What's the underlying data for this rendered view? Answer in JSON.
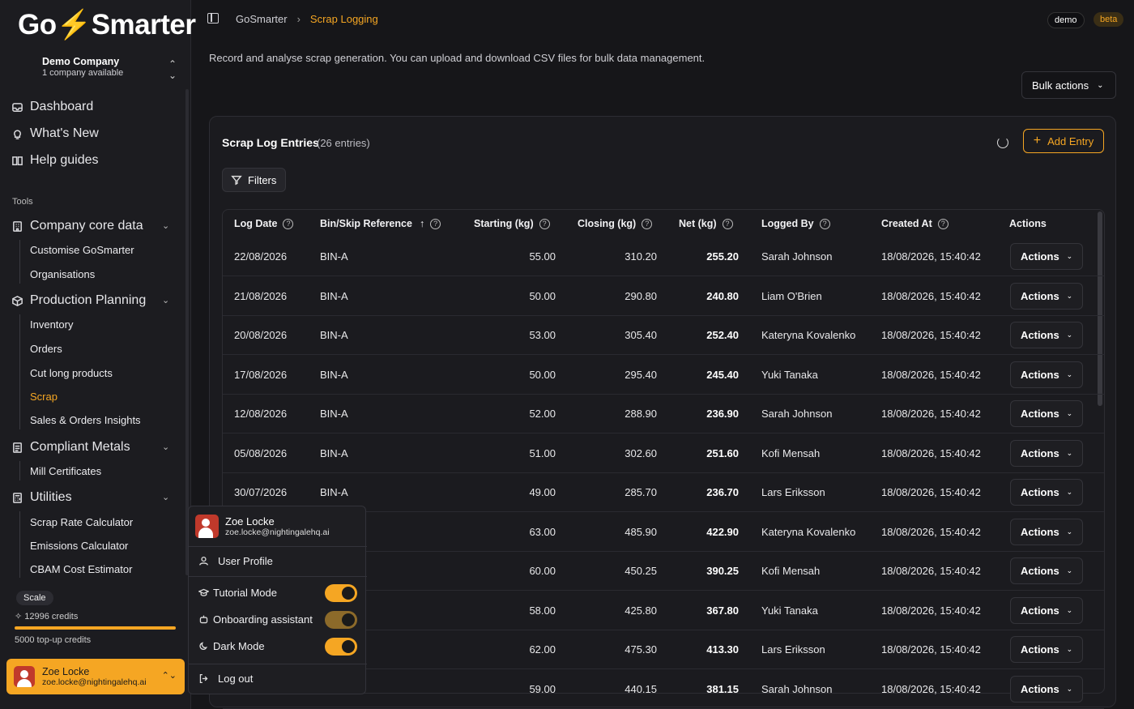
{
  "brand": {
    "logo_pre": "Go",
    "logo_bolt": "⚡",
    "logo_post": "Smarter"
  },
  "company": {
    "name": "Demo Company",
    "subtitle": "1 company available"
  },
  "nav": {
    "dashboard": "Dashboard",
    "whats_new": "What's New",
    "help": "Help guides",
    "tools_label": "Tools",
    "company_core": "Company core data",
    "customise": "Customise GoSmarter",
    "organisations": "Organisations",
    "production": "Production Planning",
    "inventory": "Inventory",
    "orders": "Orders",
    "cut_long": "Cut long products",
    "scrap": "Scrap",
    "sales_insights": "Sales & Orders Insights",
    "compliant": "Compliant Metals",
    "mill": "Mill Certificates",
    "utilities": "Utilities",
    "scrap_rate": "Scrap Rate Calculator",
    "emissions": "Emissions Calculator",
    "cbam": "CBAM Cost Estimator"
  },
  "plan": {
    "badge": "Scale",
    "credits": "12996 credits",
    "credits_fraction": 1.0,
    "topup": "5000 top-up credits"
  },
  "user": {
    "name": "Zoe Locke",
    "email": "zoe.locke@nightingalehq.ai"
  },
  "header": {
    "crumb_root": "GoSmarter",
    "crumb_current": "Scrap Logging",
    "tag_demo": "demo",
    "tag_beta": "beta"
  },
  "page": {
    "description": "Record and analyse scrap generation. You can upload and download CSV files for bulk data management.",
    "bulk_label": "Bulk actions"
  },
  "card": {
    "title": "Scrap Log Entries",
    "count": "(26 entries)",
    "add_label": "Add Entry",
    "filters_label": "Filters"
  },
  "table": {
    "headers": {
      "log_date": "Log Date",
      "bin": "Bin/Skip Reference",
      "starting": "Starting (kg)",
      "closing": "Closing (kg)",
      "net": "Net (kg)",
      "logged_by": "Logged By",
      "created_at": "Created At",
      "actions": "Actions"
    },
    "rows": [
      {
        "date": "22/08/2026",
        "bin": "BIN-A",
        "start": "55.00",
        "close": "310.20",
        "net": "255.20",
        "by": "Sarah Johnson",
        "created": "18/08/2026, 15:40:42",
        "action": "Actions"
      },
      {
        "date": "21/08/2026",
        "bin": "BIN-A",
        "start": "50.00",
        "close": "290.80",
        "net": "240.80",
        "by": "Liam O'Brien",
        "created": "18/08/2026, 15:40:42",
        "action": "Actions"
      },
      {
        "date": "20/08/2026",
        "bin": "BIN-A",
        "start": "53.00",
        "close": "305.40",
        "net": "252.40",
        "by": "Kateryna Kovalenko",
        "created": "18/08/2026, 15:40:42",
        "action": "Actions"
      },
      {
        "date": "17/08/2026",
        "bin": "BIN-A",
        "start": "50.00",
        "close": "295.40",
        "net": "245.40",
        "by": "Yuki Tanaka",
        "created": "18/08/2026, 15:40:42",
        "action": "Actions"
      },
      {
        "date": "12/08/2026",
        "bin": "BIN-A",
        "start": "52.00",
        "close": "288.90",
        "net": "236.90",
        "by": "Sarah Johnson",
        "created": "18/08/2026, 15:40:42",
        "action": "Actions"
      },
      {
        "date": "05/08/2026",
        "bin": "BIN-A",
        "start": "51.00",
        "close": "302.60",
        "net": "251.60",
        "by": "Kofi Mensah",
        "created": "18/08/2026, 15:40:42",
        "action": "Actions"
      },
      {
        "date": "30/07/2026",
        "bin": "BIN-A",
        "start": "49.00",
        "close": "285.70",
        "net": "236.70",
        "by": "Lars Eriksson",
        "created": "18/08/2026, 15:40:42",
        "action": "Actions"
      },
      {
        "date": "",
        "bin": "",
        "start": "63.00",
        "close": "485.90",
        "net": "422.90",
        "by": "Kateryna Kovalenko",
        "created": "18/08/2026, 15:40:42",
        "action": "Actions"
      },
      {
        "date": "",
        "bin": "",
        "start": "60.00",
        "close": "450.25",
        "net": "390.25",
        "by": "Kofi Mensah",
        "created": "18/08/2026, 15:40:42",
        "action": "Actions"
      },
      {
        "date": "",
        "bin": "",
        "start": "58.00",
        "close": "425.80",
        "net": "367.80",
        "by": "Yuki Tanaka",
        "created": "18/08/2026, 15:40:42",
        "action": "Actions"
      },
      {
        "date": "",
        "bin": "",
        "start": "62.00",
        "close": "475.30",
        "net": "413.30",
        "by": "Lars Eriksson",
        "created": "18/08/2026, 15:40:42",
        "action": "Actions"
      },
      {
        "date": "",
        "bin": "",
        "start": "59.00",
        "close": "440.15",
        "net": "381.15",
        "by": "Sarah Johnson",
        "created": "18/08/2026, 15:40:42",
        "action": "Actions"
      }
    ]
  },
  "menu": {
    "profile": "User Profile",
    "tutorial": "Tutorial Mode",
    "onboarding": "Onboarding assistant",
    "dark": "Dark Mode",
    "logout": "Log out",
    "tutorial_on": true,
    "onboarding_on": true,
    "dark_on": true
  },
  "colors": {
    "accent": "#f5a623",
    "background": "#161619"
  }
}
